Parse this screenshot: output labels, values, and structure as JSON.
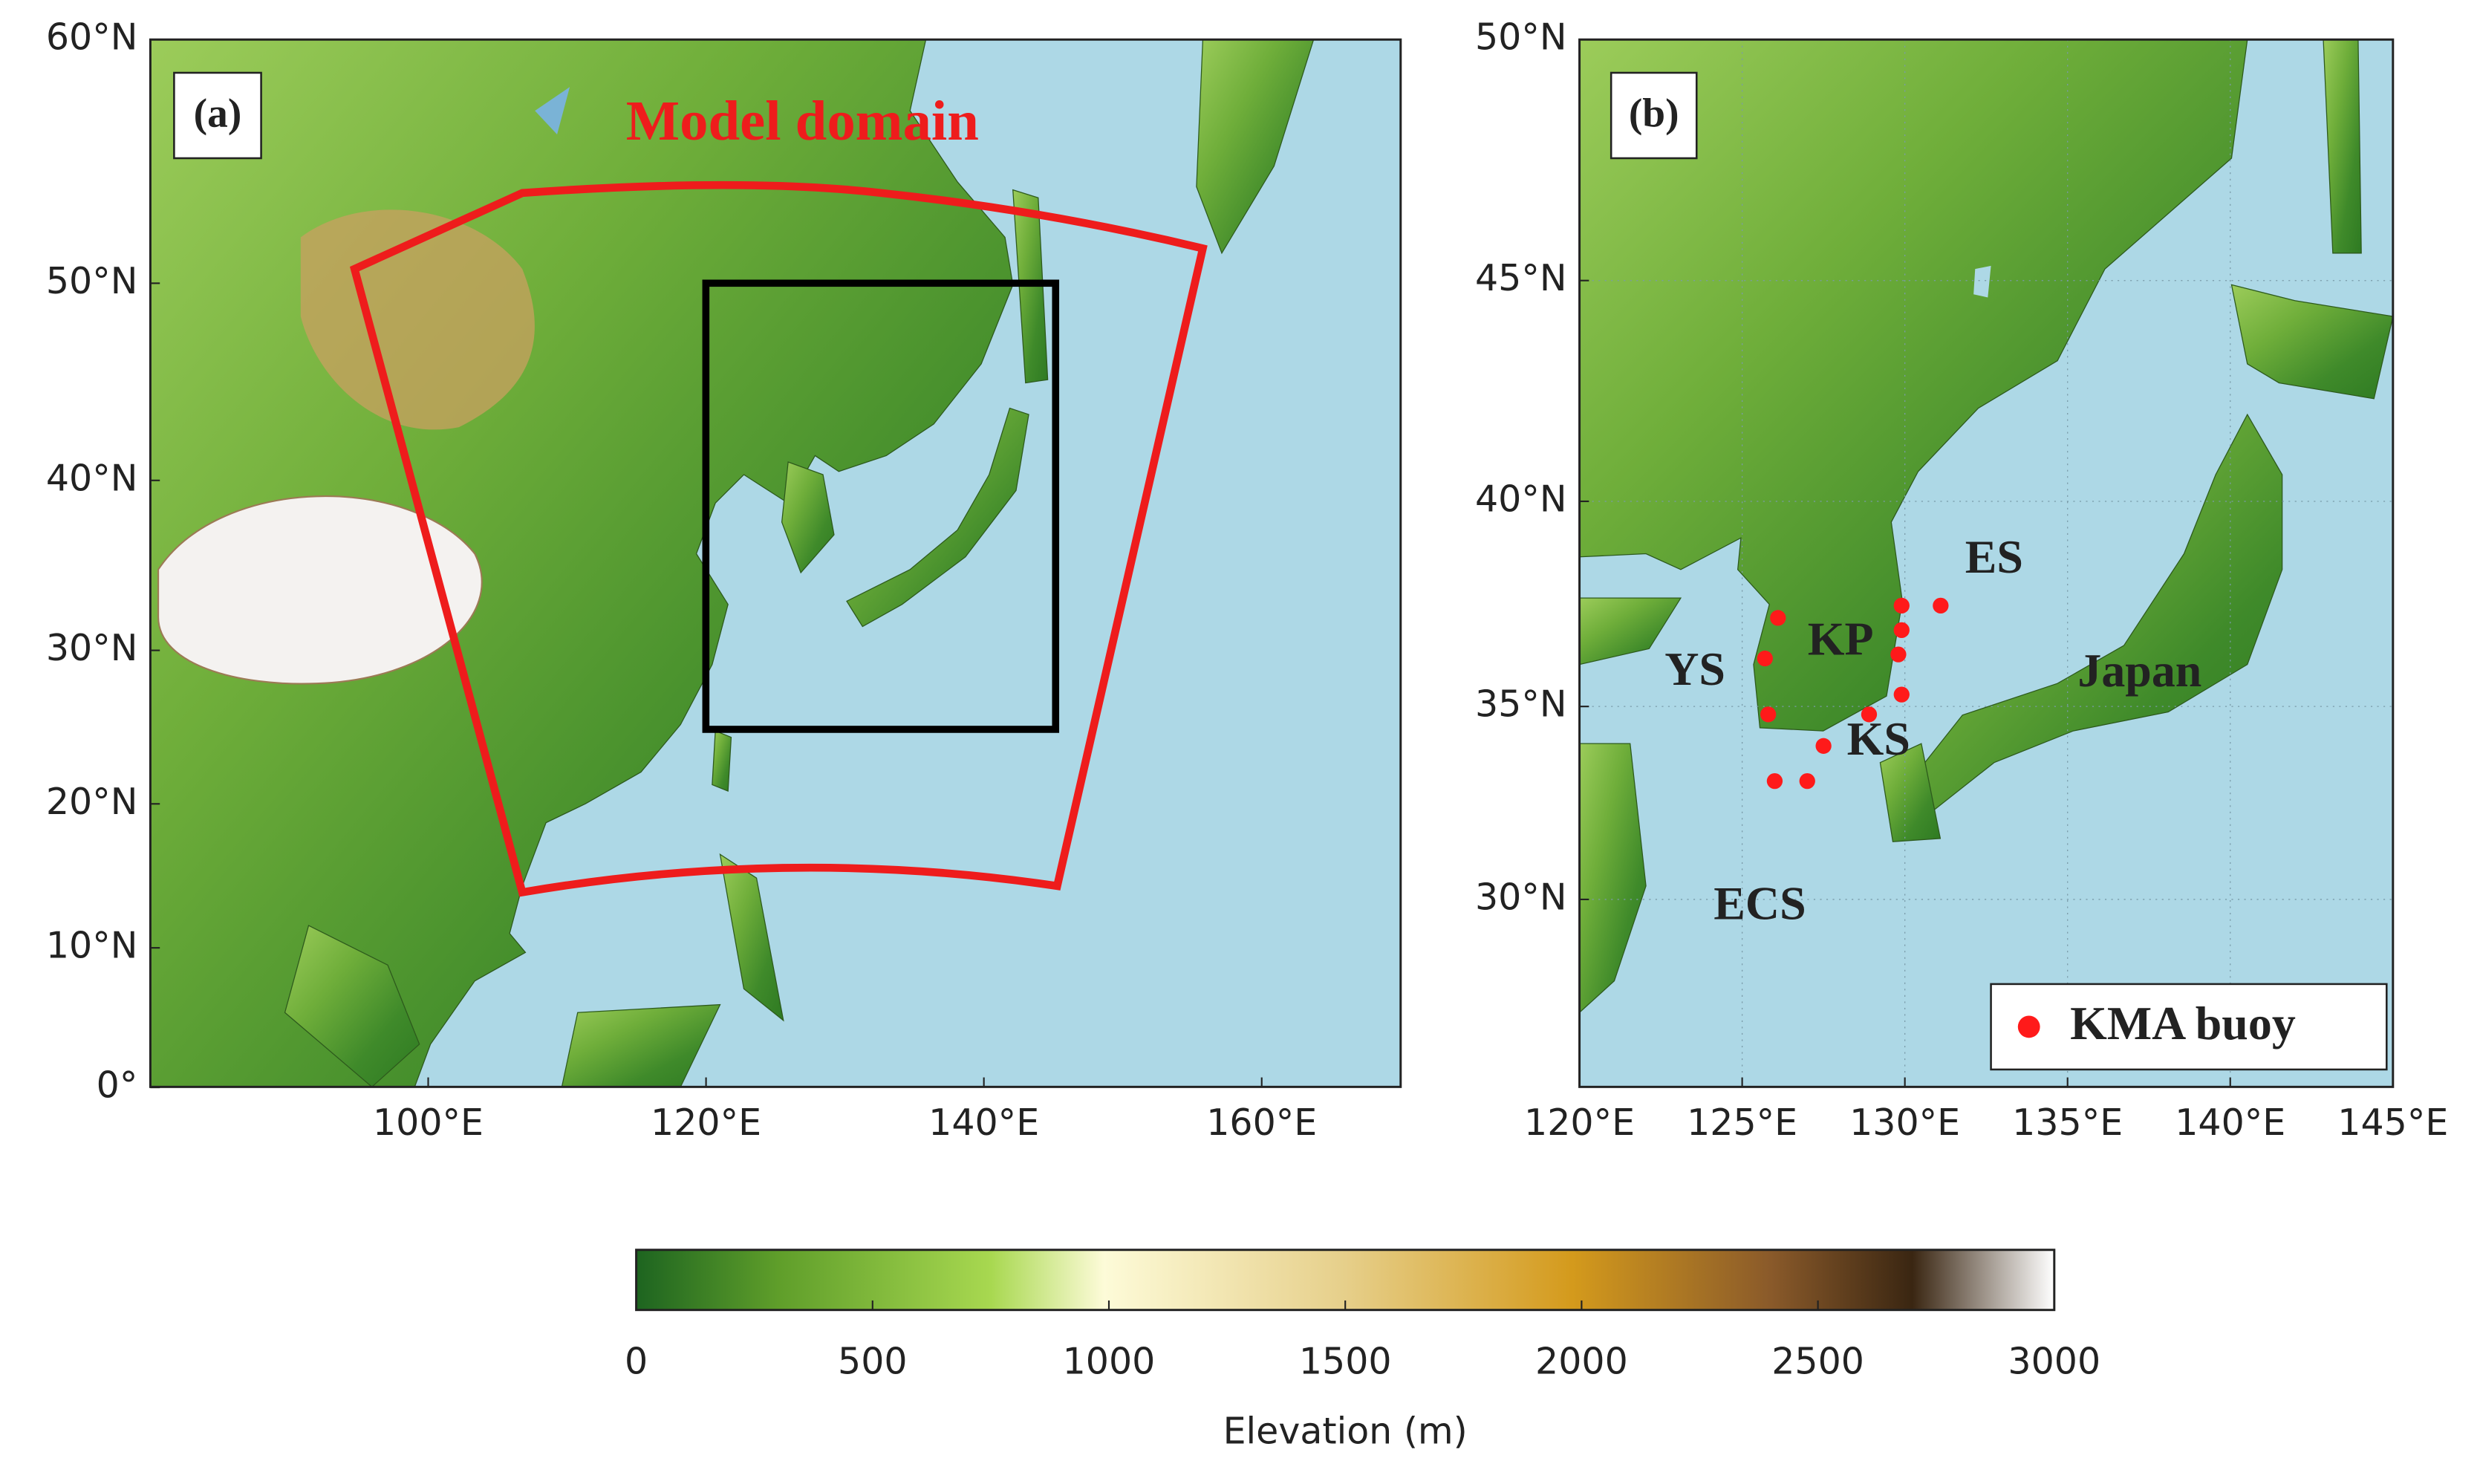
{
  "panels": [
    {
      "label": "(a)",
      "annotation": "Model domain",
      "projection": "mercator",
      "xlim": [
        80,
        170
      ],
      "ylim": [
        0,
        60
      ],
      "xticks": [
        {
          "value": 100,
          "label": "100°E"
        },
        {
          "value": 120,
          "label": "120°E"
        },
        {
          "value": 140,
          "label": "140°E"
        },
        {
          "value": 160,
          "label": "160°E"
        }
      ],
      "yticks": [
        {
          "value": 0,
          "label": "0°"
        },
        {
          "value": 10,
          "label": "10°N"
        },
        {
          "value": 20,
          "label": "20°N"
        },
        {
          "value": 30,
          "label": "30°N"
        },
        {
          "value": 40,
          "label": "40°N"
        },
        {
          "value": 50,
          "label": "50°N"
        },
        {
          "value": 60,
          "label": "60°N"
        }
      ],
      "grid": false
    },
    {
      "label": "(b)",
      "annotations": [
        "ES",
        "YS",
        "KP",
        "KS",
        "Japan",
        "ECS"
      ],
      "projection": "mercator",
      "xlim": [
        120,
        145
      ],
      "ylim": [
        25,
        50
      ],
      "xticks": [
        {
          "value": 120,
          "label": "120°E"
        },
        {
          "value": 125,
          "label": "125°E"
        },
        {
          "value": 130,
          "label": "130°E"
        },
        {
          "value": 135,
          "label": "135°E"
        },
        {
          "value": 140,
          "label": "140°E"
        },
        {
          "value": 145,
          "label": "145°E"
        }
      ],
      "yticks": [
        {
          "value": 30,
          "label": "30°N"
        },
        {
          "value": 35,
          "label": "35°N"
        },
        {
          "value": 40,
          "label": "40°N"
        },
        {
          "value": 45,
          "label": "45°N"
        },
        {
          "value": 50,
          "label": "50°N"
        }
      ],
      "grid": true,
      "buoys": {
        "name": "KMA buoy",
        "color": "#ff1a1a",
        "lon": [
          126.1,
          125.7,
          125.8,
          127.5,
          128.9,
          126.0,
          127.0,
          129.9,
          129.9,
          129.8,
          129.9,
          131.1
        ],
        "lat": [
          37.2,
          36.2,
          34.8,
          34.0,
          34.8,
          33.1,
          33.1,
          37.5,
          36.9,
          36.3,
          35.3,
          37.5
        ]
      },
      "legend": "lower right"
    }
  ],
  "colorbar": {
    "label": "Elevation (m)",
    "clim": [
      0,
      3000
    ],
    "ticks": [
      0,
      500,
      1000,
      1500,
      2000,
      2500,
      3000
    ]
  }
}
